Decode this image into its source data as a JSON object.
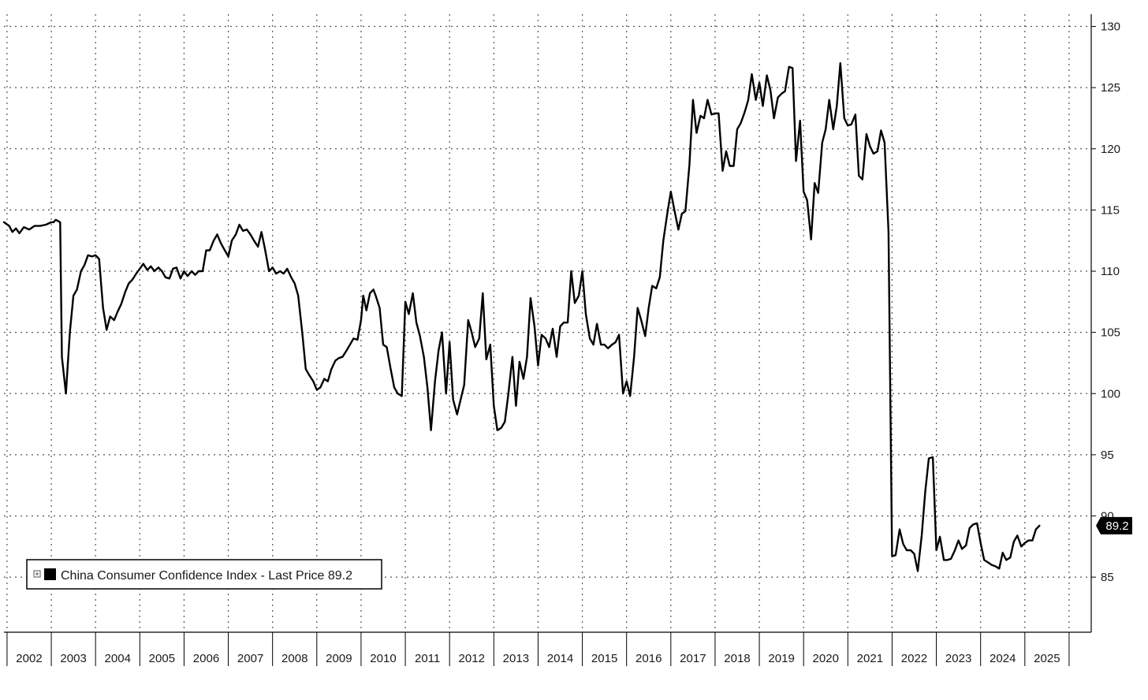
{
  "chart_data": {
    "type": "line",
    "title": "",
    "xlabel": "",
    "ylabel": "",
    "ylim": [
      80.5,
      131
    ],
    "y_ticks": [
      85,
      90,
      95,
      100,
      105,
      110,
      115,
      120,
      125,
      130
    ],
    "x_ticks": [
      "2002",
      "2003",
      "2004",
      "2005",
      "2006",
      "2007",
      "2008",
      "2009",
      "2010",
      "2011",
      "2012",
      "2013",
      "2014",
      "2015",
      "2016",
      "2017",
      "2018",
      "2019",
      "2020",
      "2021",
      "2022",
      "2023",
      "2024",
      "2025"
    ],
    "grid": true,
    "legend_position": "bottom-left",
    "legend_label": "China Consumer Confidence Index - Last Price 89.2",
    "last_value_label": "89.2",
    "line_color": "#000000",
    "series": [
      {
        "name": "China Consumer Confidence Index",
        "points": [
          [
            2001.93,
            114.0
          ],
          [
            2002.05,
            113.7
          ],
          [
            2002.12,
            113.2
          ],
          [
            2002.2,
            113.5
          ],
          [
            2002.28,
            113.1
          ],
          [
            2002.38,
            113.6
          ],
          [
            2002.5,
            113.4
          ],
          [
            2002.62,
            113.7
          ],
          [
            2002.75,
            113.7
          ],
          [
            2002.88,
            113.8
          ],
          [
            2003.0,
            114.0
          ],
          [
            2003.05,
            114.0
          ],
          [
            2003.1,
            114.2
          ],
          [
            2003.2,
            114.0
          ],
          [
            2003.24,
            103.0
          ],
          [
            2003.33,
            100.0
          ],
          [
            2003.42,
            105.0
          ],
          [
            2003.5,
            108.0
          ],
          [
            2003.58,
            108.5
          ],
          [
            2003.67,
            110.0
          ],
          [
            2003.75,
            110.5
          ],
          [
            2003.83,
            111.3
          ],
          [
            2003.92,
            111.2
          ],
          [
            2004.0,
            111.3
          ],
          [
            2004.08,
            111.0
          ],
          [
            2004.17,
            107.0
          ],
          [
            2004.25,
            105.2
          ],
          [
            2004.33,
            106.3
          ],
          [
            2004.42,
            106.0
          ],
          [
            2004.5,
            106.7
          ],
          [
            2004.58,
            107.3
          ],
          [
            2004.67,
            108.3
          ],
          [
            2004.75,
            109.0
          ],
          [
            2004.83,
            109.3
          ],
          [
            2004.92,
            109.8
          ],
          [
            2005.0,
            110.2
          ],
          [
            2005.08,
            110.6
          ],
          [
            2005.17,
            110.1
          ],
          [
            2005.25,
            110.4
          ],
          [
            2005.33,
            110.0
          ],
          [
            2005.42,
            110.3
          ],
          [
            2005.5,
            110.0
          ],
          [
            2005.58,
            109.5
          ],
          [
            2005.67,
            109.4
          ],
          [
            2005.75,
            110.2
          ],
          [
            2005.83,
            110.3
          ],
          [
            2005.92,
            109.4
          ],
          [
            2006.0,
            110.0
          ],
          [
            2006.08,
            109.6
          ],
          [
            2006.17,
            110.0
          ],
          [
            2006.25,
            109.7
          ],
          [
            2006.33,
            110.0
          ],
          [
            2006.42,
            110.0
          ],
          [
            2006.5,
            111.7
          ],
          [
            2006.58,
            111.7
          ],
          [
            2006.67,
            112.5
          ],
          [
            2006.75,
            113.0
          ],
          [
            2006.83,
            112.3
          ],
          [
            2006.92,
            111.7
          ],
          [
            2007.0,
            111.2
          ],
          [
            2007.08,
            112.5
          ],
          [
            2007.17,
            113.0
          ],
          [
            2007.25,
            113.8
          ],
          [
            2007.33,
            113.3
          ],
          [
            2007.42,
            113.4
          ],
          [
            2007.5,
            113.0
          ],
          [
            2007.58,
            112.5
          ],
          [
            2007.67,
            112.0
          ],
          [
            2007.75,
            113.2
          ],
          [
            2007.83,
            111.8
          ],
          [
            2007.92,
            110.0
          ],
          [
            2008.0,
            110.3
          ],
          [
            2008.08,
            109.8
          ],
          [
            2008.17,
            110.0
          ],
          [
            2008.25,
            109.8
          ],
          [
            2008.33,
            110.2
          ],
          [
            2008.42,
            109.5
          ],
          [
            2008.5,
            109.0
          ],
          [
            2008.58,
            108.0
          ],
          [
            2008.67,
            105.0
          ],
          [
            2008.75,
            102.0
          ],
          [
            2008.83,
            101.5
          ],
          [
            2008.92,
            101.0
          ],
          [
            2009.0,
            100.3
          ],
          [
            2009.08,
            100.5
          ],
          [
            2009.17,
            101.2
          ],
          [
            2009.25,
            101.0
          ],
          [
            2009.33,
            102.0
          ],
          [
            2009.42,
            102.7
          ],
          [
            2009.5,
            102.9
          ],
          [
            2009.58,
            103.0
          ],
          [
            2009.67,
            103.5
          ],
          [
            2009.75,
            104.0
          ],
          [
            2009.83,
            104.5
          ],
          [
            2009.92,
            104.4
          ],
          [
            2010.0,
            106.0
          ],
          [
            2010.05,
            108.0
          ],
          [
            2010.12,
            106.8
          ],
          [
            2010.2,
            108.2
          ],
          [
            2010.28,
            108.5
          ],
          [
            2010.33,
            108.0
          ],
          [
            2010.42,
            107.0
          ],
          [
            2010.5,
            104.0
          ],
          [
            2010.58,
            103.8
          ],
          [
            2010.67,
            102.0
          ],
          [
            2010.75,
            100.5
          ],
          [
            2010.83,
            100.0
          ],
          [
            2010.92,
            99.8
          ],
          [
            2011.0,
            107.5
          ],
          [
            2011.08,
            106.5
          ],
          [
            2011.17,
            108.2
          ],
          [
            2011.25,
            105.8
          ],
          [
            2011.33,
            104.7
          ],
          [
            2011.42,
            103.0
          ],
          [
            2011.5,
            100.5
          ],
          [
            2011.58,
            97.0
          ],
          [
            2011.67,
            101.0
          ],
          [
            2011.75,
            103.5
          ],
          [
            2011.83,
            105.0
          ],
          [
            2011.92,
            100.0
          ],
          [
            2012.0,
            104.2
          ],
          [
            2012.08,
            99.5
          ],
          [
            2012.17,
            98.3
          ],
          [
            2012.25,
            99.5
          ],
          [
            2012.33,
            100.7
          ],
          [
            2012.42,
            106.0
          ],
          [
            2012.5,
            105.0
          ],
          [
            2012.58,
            103.8
          ],
          [
            2012.67,
            104.5
          ],
          [
            2012.75,
            108.2
          ],
          [
            2012.83,
            102.8
          ],
          [
            2012.92,
            104.0
          ],
          [
            2013.0,
            99.0
          ],
          [
            2013.08,
            97.0
          ],
          [
            2013.17,
            97.2
          ],
          [
            2013.25,
            97.7
          ],
          [
            2013.33,
            100.0
          ],
          [
            2013.42,
            103.0
          ],
          [
            2013.5,
            99.0
          ],
          [
            2013.58,
            102.6
          ],
          [
            2013.67,
            101.2
          ],
          [
            2013.75,
            103.0
          ],
          [
            2013.83,
            107.8
          ],
          [
            2013.92,
            105.5
          ],
          [
            2014.0,
            102.3
          ],
          [
            2014.08,
            104.8
          ],
          [
            2014.17,
            104.5
          ],
          [
            2014.25,
            103.8
          ],
          [
            2014.33,
            105.3
          ],
          [
            2014.42,
            103.0
          ],
          [
            2014.5,
            105.5
          ],
          [
            2014.58,
            105.8
          ],
          [
            2014.67,
            105.8
          ],
          [
            2014.75,
            110.0
          ],
          [
            2014.83,
            107.4
          ],
          [
            2014.92,
            108.0
          ],
          [
            2015.0,
            110.0
          ],
          [
            2015.08,
            106.5
          ],
          [
            2015.17,
            104.5
          ],
          [
            2015.25,
            104.0
          ],
          [
            2015.33,
            105.7
          ],
          [
            2015.42,
            104.0
          ],
          [
            2015.5,
            104.0
          ],
          [
            2015.58,
            103.7
          ],
          [
            2015.67,
            104.0
          ],
          [
            2015.75,
            104.2
          ],
          [
            2015.83,
            104.8
          ],
          [
            2015.92,
            100.0
          ],
          [
            2016.0,
            101.0
          ],
          [
            2016.08,
            99.8
          ],
          [
            2016.17,
            103.0
          ],
          [
            2016.25,
            107.0
          ],
          [
            2016.33,
            106.0
          ],
          [
            2016.42,
            104.7
          ],
          [
            2016.5,
            107.0
          ],
          [
            2016.58,
            108.8
          ],
          [
            2016.67,
            108.6
          ],
          [
            2016.75,
            109.5
          ],
          [
            2016.83,
            112.5
          ],
          [
            2016.92,
            114.7
          ],
          [
            2017.0,
            116.5
          ],
          [
            2017.08,
            115.0
          ],
          [
            2017.17,
            113.4
          ],
          [
            2017.25,
            114.7
          ],
          [
            2017.33,
            114.9
          ],
          [
            2017.42,
            118.7
          ],
          [
            2017.5,
            124.0
          ],
          [
            2017.58,
            121.3
          ],
          [
            2017.67,
            122.7
          ],
          [
            2017.75,
            122.5
          ],
          [
            2017.83,
            124.0
          ],
          [
            2017.92,
            122.8
          ],
          [
            2018.0,
            122.9
          ],
          [
            2018.08,
            122.9
          ],
          [
            2018.17,
            118.2
          ],
          [
            2018.25,
            119.8
          ],
          [
            2018.33,
            118.6
          ],
          [
            2018.42,
            118.6
          ],
          [
            2018.5,
            121.6
          ],
          [
            2018.58,
            122.1
          ],
          [
            2018.67,
            123.0
          ],
          [
            2018.75,
            124.0
          ],
          [
            2018.83,
            126.1
          ],
          [
            2018.92,
            124.0
          ],
          [
            2019.0,
            125.4
          ],
          [
            2019.08,
            123.5
          ],
          [
            2019.17,
            126.0
          ],
          [
            2019.25,
            124.8
          ],
          [
            2019.33,
            122.5
          ],
          [
            2019.42,
            124.2
          ],
          [
            2019.5,
            124.5
          ],
          [
            2019.58,
            124.7
          ],
          [
            2019.67,
            126.7
          ],
          [
            2019.75,
            126.6
          ],
          [
            2019.83,
            119.0
          ],
          [
            2019.92,
            122.3
          ],
          [
            2020.0,
            116.5
          ],
          [
            2020.08,
            115.8
          ],
          [
            2020.17,
            112.6
          ],
          [
            2020.25,
            117.2
          ],
          [
            2020.33,
            116.4
          ],
          [
            2020.42,
            120.5
          ],
          [
            2020.5,
            121.6
          ],
          [
            2020.58,
            124.0
          ],
          [
            2020.67,
            121.6
          ],
          [
            2020.75,
            123.5
          ],
          [
            2020.83,
            127.0
          ],
          [
            2020.92,
            122.5
          ],
          [
            2021.0,
            121.9
          ],
          [
            2021.08,
            122.0
          ],
          [
            2021.17,
            122.8
          ],
          [
            2021.25,
            117.8
          ],
          [
            2021.33,
            117.5
          ],
          [
            2021.42,
            121.2
          ],
          [
            2021.5,
            120.2
          ],
          [
            2021.58,
            119.6
          ],
          [
            2021.67,
            119.8
          ],
          [
            2021.75,
            121.5
          ],
          [
            2021.83,
            120.5
          ],
          [
            2021.92,
            113.2
          ],
          [
            2022.0,
            86.7
          ],
          [
            2022.08,
            86.8
          ],
          [
            2022.17,
            88.9
          ],
          [
            2022.25,
            87.7
          ],
          [
            2022.33,
            87.2
          ],
          [
            2022.42,
            87.2
          ],
          [
            2022.5,
            86.9
          ],
          [
            2022.58,
            85.5
          ],
          [
            2022.67,
            88.4
          ],
          [
            2022.75,
            92.0
          ],
          [
            2022.83,
            94.7
          ],
          [
            2022.92,
            94.8
          ],
          [
            2023.0,
            87.2
          ],
          [
            2023.08,
            88.3
          ],
          [
            2023.17,
            86.4
          ],
          [
            2023.25,
            86.4
          ],
          [
            2023.33,
            86.5
          ],
          [
            2023.42,
            87.2
          ],
          [
            2023.5,
            88.0
          ],
          [
            2023.58,
            87.3
          ],
          [
            2023.67,
            87.6
          ],
          [
            2023.75,
            89.0
          ],
          [
            2023.83,
            89.3
          ],
          [
            2023.92,
            89.4
          ],
          [
            2024.0,
            87.8
          ],
          [
            2024.08,
            86.4
          ],
          [
            2024.17,
            86.2
          ],
          [
            2024.25,
            86.0
          ],
          [
            2024.33,
            85.9
          ],
          [
            2024.42,
            85.7
          ],
          [
            2024.5,
            87.0
          ],
          [
            2024.58,
            86.4
          ],
          [
            2024.67,
            86.6
          ],
          [
            2024.75,
            87.9
          ],
          [
            2024.83,
            88.4
          ],
          [
            2024.92,
            87.5
          ],
          [
            2025.0,
            87.8
          ],
          [
            2025.08,
            88.0
          ],
          [
            2025.17,
            88.0
          ],
          [
            2025.25,
            88.9
          ],
          [
            2025.33,
            89.2
          ]
        ]
      }
    ]
  }
}
